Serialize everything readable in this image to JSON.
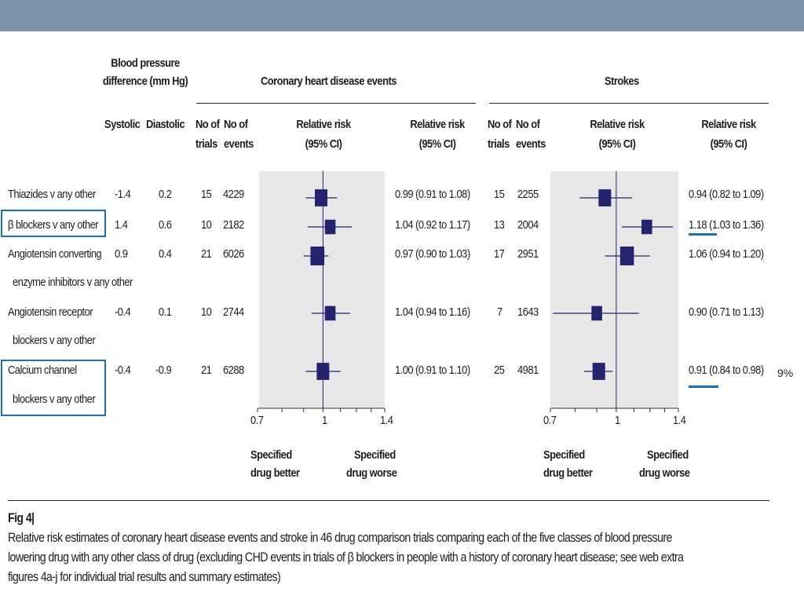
{
  "headers": {
    "bp_difference": [
      "Blood pressure",
      "difference (mm Hg)"
    ],
    "systolic": "Systolic",
    "diastolic": "Diastolic",
    "chd_group": "Coronary heart disease events",
    "stroke_group": "Strokes",
    "no_of_trials": [
      "No of",
      "trials"
    ],
    "no_of_events": [
      "No of",
      "events"
    ],
    "relative_risk": [
      "Relative risk",
      "(95% CI)"
    ]
  },
  "rows": [
    {
      "label": [
        "Thiazides v any other"
      ],
      "systolic": "-1.4",
      "diastolic": "0.2",
      "chd_trials": "15",
      "chd_events": "4229",
      "chd_ci": "0.99 (0.91 to 1.08)",
      "stroke_trials": "15",
      "stroke_events": "2255",
      "stroke_ci": "0.94 (0.82 to 1.09)"
    },
    {
      "label": [
        "β blockers v any other"
      ],
      "systolic": "1.4",
      "diastolic": "0.6",
      "chd_trials": "10",
      "chd_events": "2182",
      "chd_ci": "1.04 (0.92 to 1.17)",
      "stroke_trials": "13",
      "stroke_events": "2004",
      "stroke_ci": "1.18 (1.03 to 1.36)"
    },
    {
      "label": [
        "Angiotensin converting",
        "enzyme inhibitors v any other"
      ],
      "systolic": "0.9",
      "diastolic": "0.4",
      "chd_trials": "21",
      "chd_events": "6026",
      "chd_ci": "0.97 (0.90 to 1.03)",
      "stroke_trials": "17",
      "stroke_events": "2951",
      "stroke_ci": "1.06 (0.94 to 1.20)"
    },
    {
      "label": [
        "Angiotensin receptor",
        "blockers v any other"
      ],
      "systolic": "-0.4",
      "diastolic": "0.1",
      "chd_trials": "10",
      "chd_events": "2744",
      "chd_ci": "1.04 (0.94 to 1.16)",
      "stroke_trials": "7",
      "stroke_events": "1643",
      "stroke_ci": "0.90 (0.71 to 1.13)"
    },
    {
      "label": [
        "Calcium channel",
        "blockers v any other"
      ],
      "systolic": "-0.4",
      "diastolic": "-0.9",
      "chd_trials": "21",
      "chd_events": "6288",
      "chd_ci": "1.00 (0.91 to 1.10)",
      "stroke_trials": "25",
      "stroke_events": "4981",
      "stroke_ci": "0.91 (0.84 to 0.98)"
    }
  ],
  "axis": {
    "ticks": [
      "0.7",
      "1",
      "1.4"
    ],
    "better": [
      "Specified",
      "drug better"
    ],
    "worse": [
      "Specified",
      "drug worse"
    ]
  },
  "side_note": "9%",
  "caption": {
    "fig_label": "Fig 4|",
    "lines": [
      "Relative risk estimates of coronary heart disease events and stroke in 46 drug comparison trials comparing each of the five classes of blood pressure",
      "lowering drug with any other class of drug (excluding CHD events in trials of β blockers in people with a history of coronary heart disease; see web extra",
      "figures 4a-j for individual trial results and summary estimates)"
    ]
  },
  "colors": {
    "marker": "#24246e",
    "highlight": "#1f6fb4",
    "panel": "#e8e8e8",
    "topbar": "#7e93a8"
  },
  "chart_data": [
    {
      "type": "forest",
      "title": "Coronary heart disease events",
      "xlabel": "Relative risk (95% CI)",
      "xscale": "log",
      "xlim": [
        0.7,
        1.4
      ],
      "reference_line": 1,
      "categories": [
        "Thiazides v any other",
        "β blockers v any other",
        "Angiotensin converting enzyme inhibitors v any other",
        "Angiotensin receptor blockers v any other",
        "Calcium channel blockers v any other"
      ],
      "estimates": [
        0.99,
        1.04,
        0.97,
        1.04,
        1.0
      ],
      "lower": [
        0.91,
        0.92,
        0.9,
        0.94,
        0.91
      ],
      "upper": [
        1.08,
        1.17,
        1.03,
        1.16,
        1.1
      ],
      "n_trials": [
        15,
        10,
        21,
        10,
        21
      ],
      "n_events": [
        4229,
        2182,
        6026,
        2744,
        6288
      ]
    },
    {
      "type": "forest",
      "title": "Strokes",
      "xlabel": "Relative risk (95% CI)",
      "xscale": "log",
      "xlim": [
        0.7,
        1.4
      ],
      "reference_line": 1,
      "categories": [
        "Thiazides v any other",
        "β blockers v any other",
        "Angiotensin converting enzyme inhibitors v any other",
        "Angiotensin receptor blockers v any other",
        "Calcium channel blockers v any other"
      ],
      "estimates": [
        0.94,
        1.18,
        1.06,
        0.9,
        0.91
      ],
      "lower": [
        0.82,
        1.03,
        0.94,
        0.71,
        0.84
      ],
      "upper": [
        1.09,
        1.36,
        1.2,
        1.13,
        0.98
      ],
      "n_trials": [
        15,
        13,
        17,
        7,
        25
      ],
      "n_events": [
        2255,
        2004,
        2951,
        1643,
        4981
      ]
    }
  ]
}
